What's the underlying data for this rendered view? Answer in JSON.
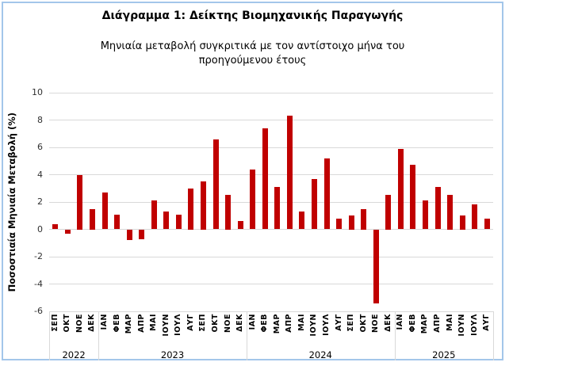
{
  "chart_data": {
    "type": "bar",
    "title": "Διάγραμμα 1: Δείκτης Βιομηχανικής Παραγωγής",
    "subtitle_line1": "Μηνιαία μεταβολή συγκριτικά με τον αντίστοιχο μήνα του",
    "subtitle_line2": "προηγούμενου έτους",
    "ylabel": "Ποσοστιαία Μηνιαία Μεταβολή (%)",
    "ylim": [
      -6,
      10
    ],
    "yticks": [
      10,
      8,
      6,
      4,
      2,
      0,
      -2,
      -4,
      -6
    ],
    "grid": true,
    "legend": "none",
    "bar_color": "#C00000",
    "gridline_color": "#D9D9D9",
    "frame_border_color": "#A3C6EA",
    "categories": [
      "ΣΕΠ",
      "ΟΚΤ",
      "ΝΟΕ",
      "ΔΕΚ",
      "ΙΑΝ",
      "ΦΕΒ",
      "ΜΑΡ",
      "ΑΠΡ",
      "ΜΑΙ",
      "ΙΟΥΝ",
      "ΙΟΥΛ",
      "ΑΥΓ",
      "ΣΕΠ",
      "ΟΚΤ",
      "ΝΟΕ",
      "ΔΕΚ",
      "ΙΑΝ",
      "ΦΕΒ",
      "ΜΑΡ",
      "ΑΠΡ",
      "ΜΑΙ",
      "ΙΟΥΝ",
      "ΙΟΥΛ",
      "ΑΥΓ",
      "ΣΕΠ",
      "ΟΚΤ",
      "ΝΟΕ",
      "ΔΕΚ",
      "ΙΑΝ",
      "ΦΕΒ",
      "ΜΑΡ",
      "ΑΠΡ",
      "ΜΑΙ",
      "ΙΟΥΝ",
      "ΙΟΥΛ",
      "ΑΥΓ"
    ],
    "values": [
      0.4,
      -0.3,
      4.0,
      1.5,
      2.7,
      1.1,
      -0.8,
      -0.7,
      2.1,
      1.3,
      1.1,
      3.0,
      3.5,
      6.6,
      2.5,
      0.6,
      4.4,
      7.4,
      3.1,
      8.3,
      1.3,
      3.7,
      5.2,
      0.8,
      1.0,
      1.5,
      -5.4,
      2.5,
      5.9,
      4.7,
      2.1,
      3.1,
      2.5,
      1.0,
      1.8,
      0.8
    ],
    "year_groups": [
      {
        "label": "2022",
        "count": 4
      },
      {
        "label": "2023",
        "count": 12
      },
      {
        "label": "2024",
        "count": 12
      },
      {
        "label": "2025",
        "count": 8
      }
    ]
  }
}
